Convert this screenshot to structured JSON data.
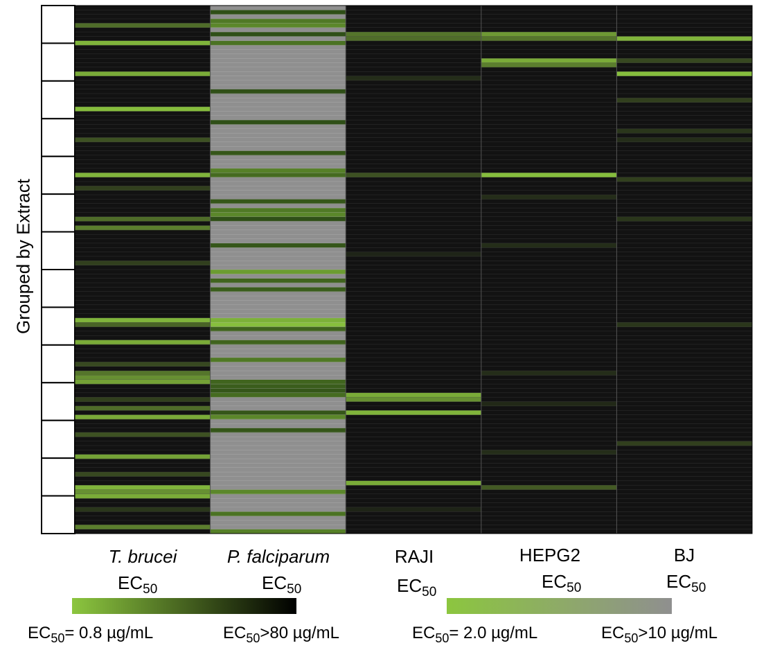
{
  "chart_data": {
    "type": "heatmap",
    "ylabel": "Grouped by Extract",
    "row_count": 120,
    "extract_group_count": 14,
    "columns": [
      {
        "name": "T. brucei",
        "italic": true,
        "label_suffix": "EC",
        "label_sub": "50",
        "scale": "antiparasitic",
        "hits": [
          [
            4,
            0.5
          ],
          [
            8,
            0.9
          ],
          [
            15,
            0.85
          ],
          [
            23,
            0.95
          ],
          [
            30,
            0.35
          ],
          [
            38,
            0.9
          ],
          [
            41,
            0.25
          ],
          [
            48,
            0.5
          ],
          [
            50,
            0.6
          ],
          [
            58,
            0.25
          ],
          [
            71,
            0.9
          ],
          [
            72,
            0.45
          ],
          [
            76,
            0.85
          ],
          [
            81,
            0.3
          ],
          [
            83,
            0.55
          ],
          [
            84,
            0.7
          ],
          [
            85,
            0.8
          ],
          [
            89,
            0.25
          ],
          [
            91,
            0.5
          ],
          [
            93,
            0.85
          ],
          [
            97,
            0.35
          ],
          [
            102,
            0.8
          ],
          [
            106,
            0.3
          ],
          [
            109,
            0.9
          ],
          [
            110,
            0.7
          ],
          [
            111,
            0.85
          ],
          [
            114,
            0.2
          ],
          [
            118,
            0.6
          ]
        ]
      },
      {
        "name": "P. falciparum",
        "italic": true,
        "label_suffix": "EC",
        "label_sub": "50",
        "scale": "antiparasitic",
        "hits": [
          [
            1,
            0.15
          ],
          [
            3,
            0.45
          ],
          [
            4,
            0.55
          ],
          [
            6,
            0.15
          ],
          [
            8,
            0.4
          ],
          [
            19,
            0.15
          ],
          [
            26,
            0.15
          ],
          [
            33,
            0.2
          ],
          [
            37,
            0.5
          ],
          [
            38,
            0.35
          ],
          [
            44,
            0.2
          ],
          [
            46,
            0.45
          ],
          [
            47,
            0.55
          ],
          [
            48,
            0.15
          ],
          [
            54,
            0.2
          ],
          [
            60,
            0.7
          ],
          [
            62,
            0.3
          ],
          [
            64,
            0.25
          ],
          [
            71,
            0.85
          ],
          [
            72,
            0.95
          ],
          [
            73,
            0.3
          ],
          [
            76,
            0.3
          ],
          [
            80,
            0.45
          ],
          [
            85,
            0.3
          ],
          [
            86,
            0.25
          ],
          [
            87,
            0.2
          ],
          [
            88,
            0.35
          ],
          [
            92,
            0.2
          ],
          [
            93,
            0.55
          ],
          [
            96,
            0.2
          ],
          [
            110,
            0.55
          ],
          [
            115,
            0.4
          ],
          [
            119,
            0.5
          ]
        ]
      },
      {
        "name": "RAJI",
        "italic": false,
        "label_suffix": "EC",
        "label_sub": "50",
        "scale": "cytotoxicity",
        "hits": [
          [
            6,
            0.55
          ],
          [
            7,
            0.5
          ],
          [
            16,
            0.15
          ],
          [
            38,
            0.35
          ],
          [
            56,
            0.1
          ],
          [
            88,
            0.85
          ],
          [
            89,
            0.7
          ],
          [
            92,
            0.9
          ],
          [
            108,
            0.85
          ],
          [
            114,
            0.1
          ]
        ]
      },
      {
        "name": "HEPG2",
        "italic": false,
        "label_suffix": "EC",
        "label_sub": "50",
        "scale": "cytotoxicity",
        "hits": [
          [
            6,
            0.75
          ],
          [
            7,
            0.55
          ],
          [
            12,
            0.85
          ],
          [
            13,
            0.6
          ],
          [
            38,
            0.95
          ],
          [
            43,
            0.15
          ],
          [
            54,
            0.15
          ],
          [
            83,
            0.15
          ],
          [
            90,
            0.12
          ],
          [
            101,
            0.15
          ],
          [
            109,
            0.4
          ]
        ]
      },
      {
        "name": "BJ",
        "italic": false,
        "label_suffix": "EC",
        "label_sub": "50",
        "scale": "cytotoxicity",
        "hits": [
          [
            7,
            0.9
          ],
          [
            12,
            0.3
          ],
          [
            15,
            0.95
          ],
          [
            21,
            0.25
          ],
          [
            28,
            0.2
          ],
          [
            30,
            0.15
          ],
          [
            39,
            0.25
          ],
          [
            48,
            0.2
          ],
          [
            72,
            0.2
          ],
          [
            99,
            0.25
          ]
        ]
      }
    ],
    "colors": {
      "antiparasitic_active": "#8CC63F",
      "antiparasitic_inactive": "#111111",
      "cytotoxicity_active": "#8CC63F",
      "cytotoxicity_inactive": "#8F8F8F",
      "pfal_background": "#8F8F8F",
      "default_background": "#121212",
      "row_line": "#4a4a4a"
    },
    "legend": [
      {
        "prefix": "EC",
        "sub": "50",
        "left_value": "= 0.8 µg/mL",
        "right_value": ">80 µg/mL",
        "from": "#8CC63F",
        "to": "#000000"
      },
      {
        "prefix": "EC",
        "sub": "50",
        "left_value": "= 2.0 µg/mL",
        "right_value": ">10 µg/mL",
        "from": "#8CC63F",
        "to": "#8F8F8F"
      }
    ]
  }
}
